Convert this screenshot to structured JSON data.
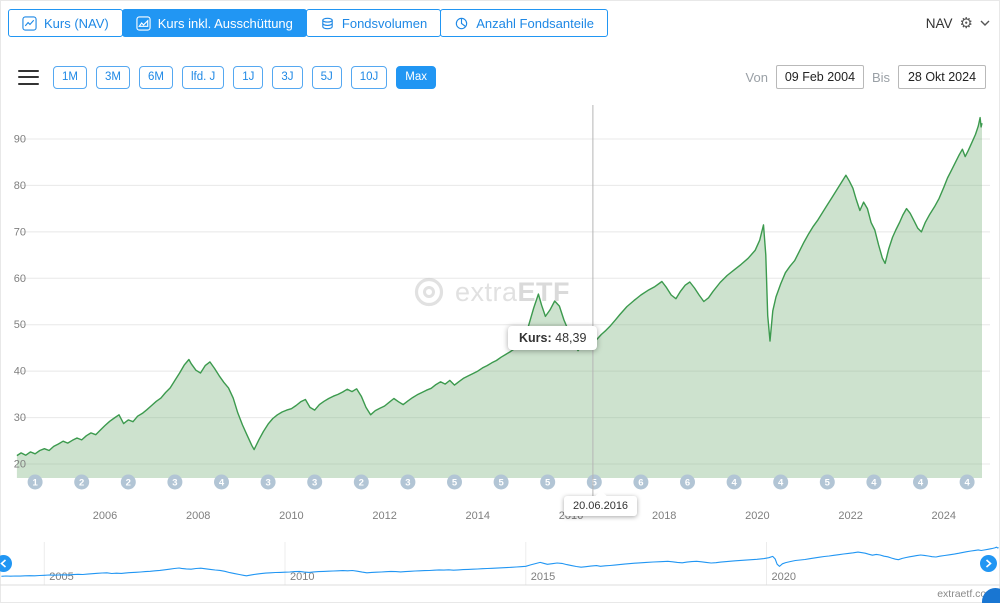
{
  "header": {
    "tabs": [
      {
        "label": "Kurs (NAV)",
        "active": false
      },
      {
        "label": "Kurs inkl. Ausschüttung",
        "active": true
      },
      {
        "label": "Fondsvolumen",
        "active": false
      },
      {
        "label": "Anzahl Fondsanteile",
        "active": false
      }
    ],
    "nav_label": "NAV"
  },
  "toolbar": {
    "ranges": [
      {
        "label": "1M"
      },
      {
        "label": "3M"
      },
      {
        "label": "6M"
      },
      {
        "label": "lfd. J"
      },
      {
        "label": "1J"
      },
      {
        "label": "3J"
      },
      {
        "label": "5J"
      },
      {
        "label": "10J"
      },
      {
        "label": "Max",
        "active": true
      }
    ],
    "von_label": "Von",
    "bis_label": "Bis",
    "from_value": "09 Feb 2004",
    "to_value": "28 Okt 2024"
  },
  "watermark": {
    "prefix": "extra",
    "suffix": "ETF"
  },
  "chart_data": {
    "type": "area",
    "title": "",
    "xlabel": "",
    "ylabel": "",
    "xlim": [
      2004.08,
      2024.85
    ],
    "ylim": [
      17,
      97
    ],
    "yticks": [
      20,
      30,
      40,
      50,
      60,
      70,
      80,
      90
    ],
    "xticks": [
      2006,
      2008,
      2010,
      2012,
      2014,
      2016,
      2018,
      2020,
      2022,
      2024
    ],
    "line_color": "#3c9a4e",
    "fill_color": "rgba(124,179,126,0.38)",
    "crosshair": {
      "x": 2016.47,
      "y": 48.39,
      "label": "Kurs:",
      "value": "48,39",
      "date": "20.06.2016"
    },
    "dividend_markers": [
      {
        "year": 2004,
        "count": 1
      },
      {
        "year": 2005,
        "count": 2
      },
      {
        "year": 2006,
        "count": 2
      },
      {
        "year": 2007,
        "count": 3
      },
      {
        "year": 2008,
        "count": 4
      },
      {
        "year": 2009,
        "count": 3
      },
      {
        "year": 2010,
        "count": 3
      },
      {
        "year": 2011,
        "count": 2
      },
      {
        "year": 2012,
        "count": 3
      },
      {
        "year": 2013,
        "count": 5
      },
      {
        "year": 2014,
        "count": 5
      },
      {
        "year": 2015,
        "count": 5
      },
      {
        "year": 2016,
        "count": 5
      },
      {
        "year": 2017,
        "count": 6
      },
      {
        "year": 2018,
        "count": 6
      },
      {
        "year": 2019,
        "count": 4
      },
      {
        "year": 2020,
        "count": 4
      },
      {
        "year": 2021,
        "count": 5
      },
      {
        "year": 2022,
        "count": 4
      },
      {
        "year": 2023,
        "count": 4
      },
      {
        "year": 2024,
        "count": 4
      }
    ],
    "series": [
      {
        "name": "Kurs inkl. Ausschüttung",
        "points": [
          [
            2004.11,
            21.8
          ],
          [
            2004.2,
            22.4
          ],
          [
            2004.3,
            21.9
          ],
          [
            2004.4,
            22.6
          ],
          [
            2004.5,
            22.2
          ],
          [
            2004.6,
            22.9
          ],
          [
            2004.7,
            23.3
          ],
          [
            2004.8,
            22.9
          ],
          [
            2004.9,
            23.8
          ],
          [
            2005.0,
            24.3
          ],
          [
            2005.1,
            24.9
          ],
          [
            2005.2,
            24.5
          ],
          [
            2005.3,
            25.1
          ],
          [
            2005.4,
            25.6
          ],
          [
            2005.5,
            25.2
          ],
          [
            2005.6,
            26.1
          ],
          [
            2005.7,
            26.7
          ],
          [
            2005.8,
            26.3
          ],
          [
            2005.9,
            27.3
          ],
          [
            2006.0,
            28.3
          ],
          [
            2006.1,
            29.2
          ],
          [
            2006.2,
            29.9
          ],
          [
            2006.3,
            30.6
          ],
          [
            2006.4,
            28.7
          ],
          [
            2006.5,
            29.5
          ],
          [
            2006.6,
            29.1
          ],
          [
            2006.7,
            30.3
          ],
          [
            2006.8,
            30.9
          ],
          [
            2006.9,
            31.7
          ],
          [
            2007.0,
            32.6
          ],
          [
            2007.1,
            33.5
          ],
          [
            2007.2,
            34.2
          ],
          [
            2007.3,
            35.4
          ],
          [
            2007.4,
            36.4
          ],
          [
            2007.5,
            38.0
          ],
          [
            2007.6,
            39.6
          ],
          [
            2007.7,
            41.3
          ],
          [
            2007.8,
            42.5
          ],
          [
            2007.85,
            41.6
          ],
          [
            2007.95,
            40.2
          ],
          [
            2008.05,
            39.6
          ],
          [
            2008.15,
            41.2
          ],
          [
            2008.25,
            42.0
          ],
          [
            2008.35,
            40.6
          ],
          [
            2008.45,
            39.0
          ],
          [
            2008.55,
            37.6
          ],
          [
            2008.65,
            36.4
          ],
          [
            2008.75,
            34.2
          ],
          [
            2008.85,
            31.0
          ],
          [
            2008.95,
            28.4
          ],
          [
            2009.05,
            26.2
          ],
          [
            2009.15,
            24.0
          ],
          [
            2009.2,
            23.1
          ],
          [
            2009.3,
            25.2
          ],
          [
            2009.4,
            27.0
          ],
          [
            2009.5,
            28.6
          ],
          [
            2009.6,
            29.8
          ],
          [
            2009.7,
            30.6
          ],
          [
            2009.8,
            31.2
          ],
          [
            2009.9,
            31.6
          ],
          [
            2010.0,
            31.9
          ],
          [
            2010.1,
            32.6
          ],
          [
            2010.2,
            33.4
          ],
          [
            2010.3,
            33.9
          ],
          [
            2010.4,
            32.2
          ],
          [
            2010.5,
            31.6
          ],
          [
            2010.6,
            32.8
          ],
          [
            2010.7,
            33.5
          ],
          [
            2010.8,
            34.1
          ],
          [
            2010.9,
            34.6
          ],
          [
            2011.0,
            35.0
          ],
          [
            2011.1,
            35.5
          ],
          [
            2011.2,
            36.1
          ],
          [
            2011.3,
            35.6
          ],
          [
            2011.4,
            36.2
          ],
          [
            2011.5,
            34.6
          ],
          [
            2011.6,
            32.2
          ],
          [
            2011.7,
            30.6
          ],
          [
            2011.8,
            31.5
          ],
          [
            2011.9,
            32.0
          ],
          [
            2012.0,
            32.5
          ],
          [
            2012.1,
            33.3
          ],
          [
            2012.2,
            34.1
          ],
          [
            2012.3,
            33.4
          ],
          [
            2012.4,
            32.8
          ],
          [
            2012.5,
            33.6
          ],
          [
            2012.6,
            34.3
          ],
          [
            2012.7,
            34.9
          ],
          [
            2012.8,
            35.4
          ],
          [
            2012.9,
            35.9
          ],
          [
            2013.0,
            36.3
          ],
          [
            2013.1,
            37.1
          ],
          [
            2013.2,
            37.7
          ],
          [
            2013.3,
            37.2
          ],
          [
            2013.4,
            38.0
          ],
          [
            2013.5,
            37.0
          ],
          [
            2013.6,
            37.8
          ],
          [
            2013.7,
            38.5
          ],
          [
            2013.8,
            39.0
          ],
          [
            2013.9,
            39.5
          ],
          [
            2014.0,
            40.0
          ],
          [
            2014.1,
            40.7
          ],
          [
            2014.2,
            41.2
          ],
          [
            2014.3,
            41.8
          ],
          [
            2014.4,
            42.3
          ],
          [
            2014.5,
            43.0
          ],
          [
            2014.6,
            43.6
          ],
          [
            2014.7,
            44.2
          ],
          [
            2014.8,
            44.9
          ],
          [
            2014.9,
            45.7
          ],
          [
            2015.0,
            46.8
          ],
          [
            2015.1,
            50.2
          ],
          [
            2015.2,
            53.6
          ],
          [
            2015.3,
            56.6
          ],
          [
            2015.37,
            54.2
          ],
          [
            2015.45,
            51.8
          ],
          [
            2015.55,
            53.2
          ],
          [
            2015.65,
            55.1
          ],
          [
            2015.75,
            54.0
          ],
          [
            2015.85,
            51.0
          ],
          [
            2015.95,
            48.6
          ],
          [
            2016.05,
            46.2
          ],
          [
            2016.15,
            44.4
          ],
          [
            2016.25,
            45.8
          ],
          [
            2016.35,
            47.2
          ],
          [
            2016.47,
            48.39
          ],
          [
            2016.55,
            46.8
          ],
          [
            2016.65,
            47.9
          ],
          [
            2016.75,
            48.8
          ],
          [
            2016.85,
            49.8
          ],
          [
            2016.95,
            51.0
          ],
          [
            2017.05,
            52.2
          ],
          [
            2017.2,
            53.9
          ],
          [
            2017.35,
            55.2
          ],
          [
            2017.5,
            56.4
          ],
          [
            2017.65,
            57.4
          ],
          [
            2017.8,
            58.2
          ],
          [
            2017.95,
            59.3
          ],
          [
            2018.05,
            58.0
          ],
          [
            2018.15,
            56.4
          ],
          [
            2018.25,
            55.6
          ],
          [
            2018.35,
            57.2
          ],
          [
            2018.45,
            58.5
          ],
          [
            2018.55,
            59.2
          ],
          [
            2018.65,
            57.9
          ],
          [
            2018.75,
            56.4
          ],
          [
            2018.85,
            55.0
          ],
          [
            2018.95,
            55.8
          ],
          [
            2019.05,
            57.2
          ],
          [
            2019.2,
            59.1
          ],
          [
            2019.35,
            60.6
          ],
          [
            2019.5,
            61.8
          ],
          [
            2019.65,
            63.0
          ],
          [
            2019.8,
            64.3
          ],
          [
            2019.95,
            66.0
          ],
          [
            2020.05,
            68.2
          ],
          [
            2020.13,
            71.5
          ],
          [
            2020.18,
            65.0
          ],
          [
            2020.22,
            52.0
          ],
          [
            2020.27,
            46.5
          ],
          [
            2020.33,
            53.0
          ],
          [
            2020.4,
            56.0
          ],
          [
            2020.5,
            58.8
          ],
          [
            2020.6,
            61.2
          ],
          [
            2020.7,
            62.6
          ],
          [
            2020.8,
            63.8
          ],
          [
            2020.9,
            65.8
          ],
          [
            2021.0,
            67.8
          ],
          [
            2021.1,
            69.6
          ],
          [
            2021.2,
            71.2
          ],
          [
            2021.3,
            72.6
          ],
          [
            2021.4,
            74.2
          ],
          [
            2021.5,
            75.8
          ],
          [
            2021.6,
            77.4
          ],
          [
            2021.7,
            79.0
          ],
          [
            2021.8,
            80.6
          ],
          [
            2021.9,
            82.2
          ],
          [
            2021.97,
            81.0
          ],
          [
            2022.05,
            79.4
          ],
          [
            2022.12,
            77.0
          ],
          [
            2022.2,
            74.6
          ],
          [
            2022.28,
            76.4
          ],
          [
            2022.36,
            75.0
          ],
          [
            2022.44,
            72.0
          ],
          [
            2022.52,
            70.4
          ],
          [
            2022.6,
            67.2
          ],
          [
            2022.68,
            64.4
          ],
          [
            2022.74,
            63.2
          ],
          [
            2022.82,
            66.4
          ],
          [
            2022.9,
            68.8
          ],
          [
            2022.97,
            70.4
          ],
          [
            2023.05,
            72.0
          ],
          [
            2023.12,
            73.6
          ],
          [
            2023.2,
            75.0
          ],
          [
            2023.28,
            74.0
          ],
          [
            2023.36,
            72.4
          ],
          [
            2023.44,
            70.8
          ],
          [
            2023.52,
            70.0
          ],
          [
            2023.6,
            72.0
          ],
          [
            2023.7,
            73.8
          ],
          [
            2023.8,
            75.4
          ],
          [
            2023.9,
            77.2
          ],
          [
            2024.0,
            79.6
          ],
          [
            2024.08,
            81.6
          ],
          [
            2024.16,
            83.2
          ],
          [
            2024.25,
            85.0
          ],
          [
            2024.33,
            86.6
          ],
          [
            2024.4,
            87.8
          ],
          [
            2024.46,
            86.2
          ],
          [
            2024.52,
            87.4
          ],
          [
            2024.6,
            89.2
          ],
          [
            2024.68,
            91.0
          ],
          [
            2024.74,
            92.8
          ],
          [
            2024.78,
            94.6
          ],
          [
            2024.8,
            92.6
          ],
          [
            2024.82,
            93.4
          ]
        ]
      }
    ]
  },
  "navigator": {
    "xticks": [
      2005,
      2010,
      2015,
      2020
    ]
  },
  "footer": {
    "site": "extraetf.com"
  }
}
